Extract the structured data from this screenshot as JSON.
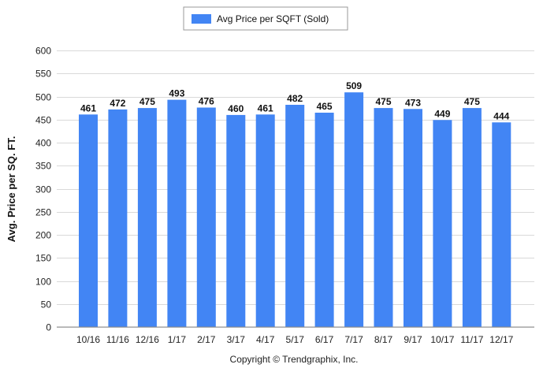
{
  "chart_data": {
    "type": "bar",
    "title": "",
    "xlabel": "",
    "ylabel": "Avg. Price per SQ. FT.",
    "ylim": [
      0,
      600
    ],
    "ytick_step": 50,
    "grid": true,
    "legend_position": "top-center",
    "categories": [
      "10/16",
      "11/16",
      "12/16",
      "1/17",
      "2/17",
      "3/17",
      "4/17",
      "5/17",
      "6/17",
      "7/17",
      "8/17",
      "9/17",
      "10/17",
      "11/17",
      "12/17"
    ],
    "series": [
      {
        "name": "Avg Price per SQFT (Sold)",
        "color": "#4285f4",
        "values": [
          461,
          472,
          475,
          493,
          476,
          460,
          461,
          482,
          465,
          509,
          475,
          473,
          449,
          475,
          444
        ]
      }
    ]
  },
  "footer": {
    "copyright": "Copyright © Trendgraphix, Inc."
  }
}
